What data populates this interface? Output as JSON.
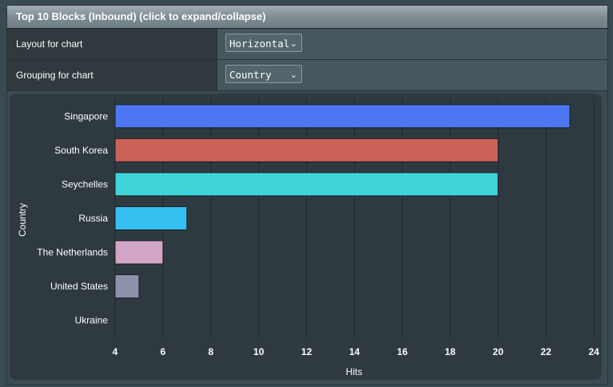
{
  "header": {
    "title": "Top 10 Blocks (Inbound) (click to expand/collapse)"
  },
  "settings": {
    "layout": {
      "label": "Layout for chart",
      "value": "Horizontal"
    },
    "grouping": {
      "label": "Grouping for chart",
      "value": "Country"
    }
  },
  "chart_data": {
    "type": "bar",
    "orientation": "horizontal",
    "xlabel": "Hits",
    "ylabel": "Country",
    "xlim": [
      4,
      24
    ],
    "xticks": [
      "4",
      "6",
      "8",
      "10",
      "12",
      "14",
      "16",
      "18",
      "20",
      "22",
      "24"
    ],
    "grid": true,
    "categories": [
      "Singapore",
      "South Korea",
      "Seychelles",
      "Russia",
      "The Netherlands",
      "United States",
      "Ukraine"
    ],
    "values": [
      23,
      20,
      20,
      7,
      6,
      5,
      4
    ],
    "colors": [
      "#4c76f2",
      "#cc6258",
      "#3fd5db",
      "#33c0f0",
      "#d3a6c8",
      "#9091ad",
      "#7d8d93"
    ]
  }
}
